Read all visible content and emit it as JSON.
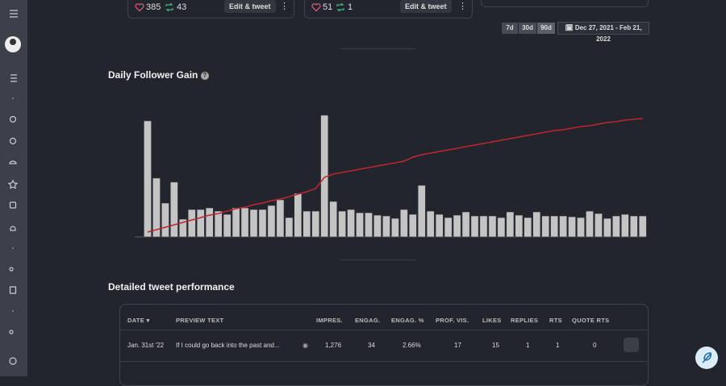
{
  "cards": [
    {
      "likes": "385",
      "retweets": "43",
      "button": "Edit & tweet"
    },
    {
      "likes": "51",
      "retweets": "1",
      "button": "Edit & tweet"
    }
  ],
  "range_buttons": [
    "7d",
    "30d",
    "90d"
  ],
  "date_range": "Dec 27, 2021 - Feb 21, 2022",
  "chart_title": "Daily Follower Gain",
  "chart": {
    "type": "bar",
    "ylim": [
      0,
      160
    ],
    "series": [
      {
        "type": "bar",
        "color": "#c4c4c4",
        "values": [
          144,
          73,
          42,
          68,
          22,
          34,
          34,
          36,
          32,
          28,
          36,
          36,
          34,
          34,
          39,
          46,
          24,
          54,
          32,
          32,
          151,
          44,
          32,
          34,
          30,
          30,
          27,
          26,
          23,
          34,
          28,
          64,
          32,
          28,
          24,
          27,
          31,
          26,
          26,
          26,
          24,
          31,
          27,
          24,
          31,
          26,
          26,
          26,
          25,
          24,
          32,
          29,
          23,
          26,
          28,
          26,
          26
        ]
      },
      {
        "type": "line",
        "color": "#c0262d",
        "values": [
          6,
          9,
          12,
          15,
          18,
          21,
          24,
          27,
          29,
          32,
          35,
          37,
          40,
          42,
          45,
          47,
          50,
          53,
          56,
          60,
          74,
          78,
          80,
          82,
          84,
          86,
          88,
          90,
          92,
          94,
          99,
          102,
          104,
          106,
          108,
          110,
          112,
          114,
          116,
          118,
          120,
          122,
          124,
          126,
          128,
          130,
          132,
          133,
          135,
          137,
          138,
          140,
          142,
          143,
          145,
          146,
          147
        ]
      }
    ]
  },
  "table_title": "Detailed tweet performance",
  "table": {
    "headers": [
      "DATE",
      "PREVIEW TEXT",
      "IMPRES.",
      "ENGAG.",
      "ENGAG. %",
      "PROF. VIS.",
      "LIKES",
      "REPLIES",
      "RTS",
      "QUOTE RTS"
    ],
    "rows": [
      [
        "Jan. 31st '22",
        "If I could go back into the past and...",
        "1,276",
        "34",
        "2.66%",
        "17",
        "15",
        "1",
        "1",
        "0"
      ]
    ]
  }
}
